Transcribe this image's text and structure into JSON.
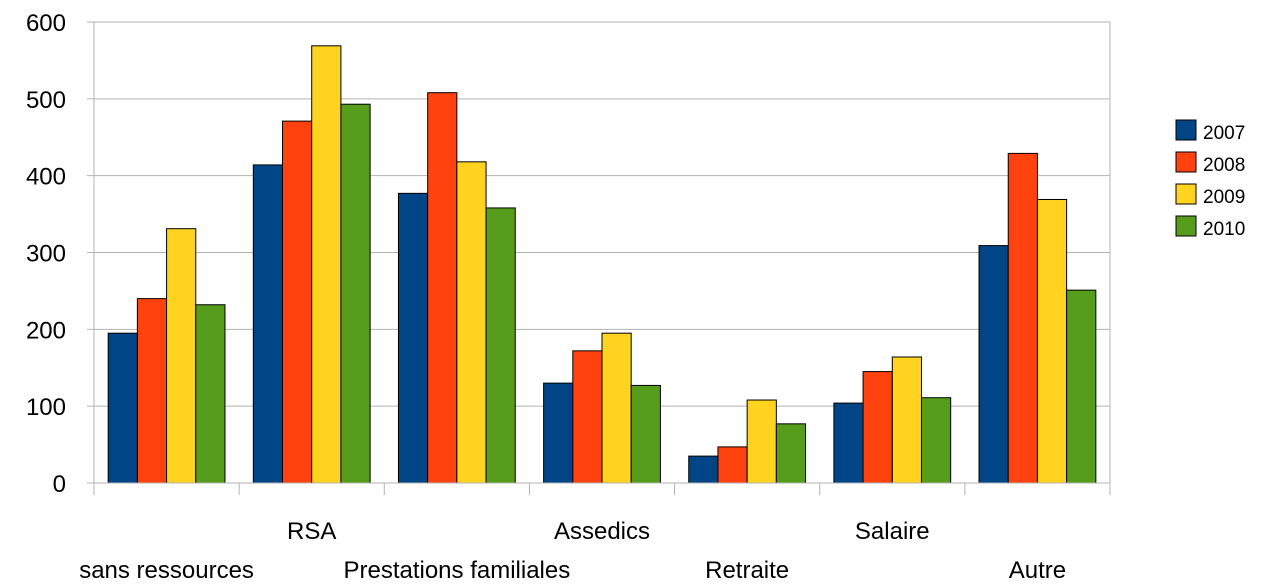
{
  "chart_data": {
    "type": "bar",
    "categories": [
      "sans ressources",
      "RSA",
      "Prestations familiales",
      "Assedics",
      "Retraite",
      "Salaire",
      "Autre"
    ],
    "category_label_row": [
      "bottom",
      "top",
      "bottom",
      "top",
      "bottom",
      "top",
      "bottom"
    ],
    "series": [
      {
        "name": "2007",
        "color": "#004586",
        "values": [
          195,
          414,
          377,
          130,
          35,
          104,
          309
        ]
      },
      {
        "name": "2008",
        "color": "#ff420e",
        "values": [
          240,
          471,
          508,
          172,
          47,
          145,
          429
        ]
      },
      {
        "name": "2009",
        "color": "#ffd320",
        "values": [
          331,
          569,
          418,
          195,
          108,
          164,
          369
        ]
      },
      {
        "name": "2010",
        "color": "#579d1c",
        "values": [
          232,
          493,
          358,
          127,
          77,
          111,
          251
        ]
      }
    ],
    "title": "",
    "xlabel": "",
    "ylabel": "",
    "ylim": [
      0,
      600
    ],
    "yticks": [
      "0",
      "100",
      "200",
      "300",
      "400",
      "500",
      "600"
    ],
    "grid": true,
    "legend_position": "right"
  }
}
